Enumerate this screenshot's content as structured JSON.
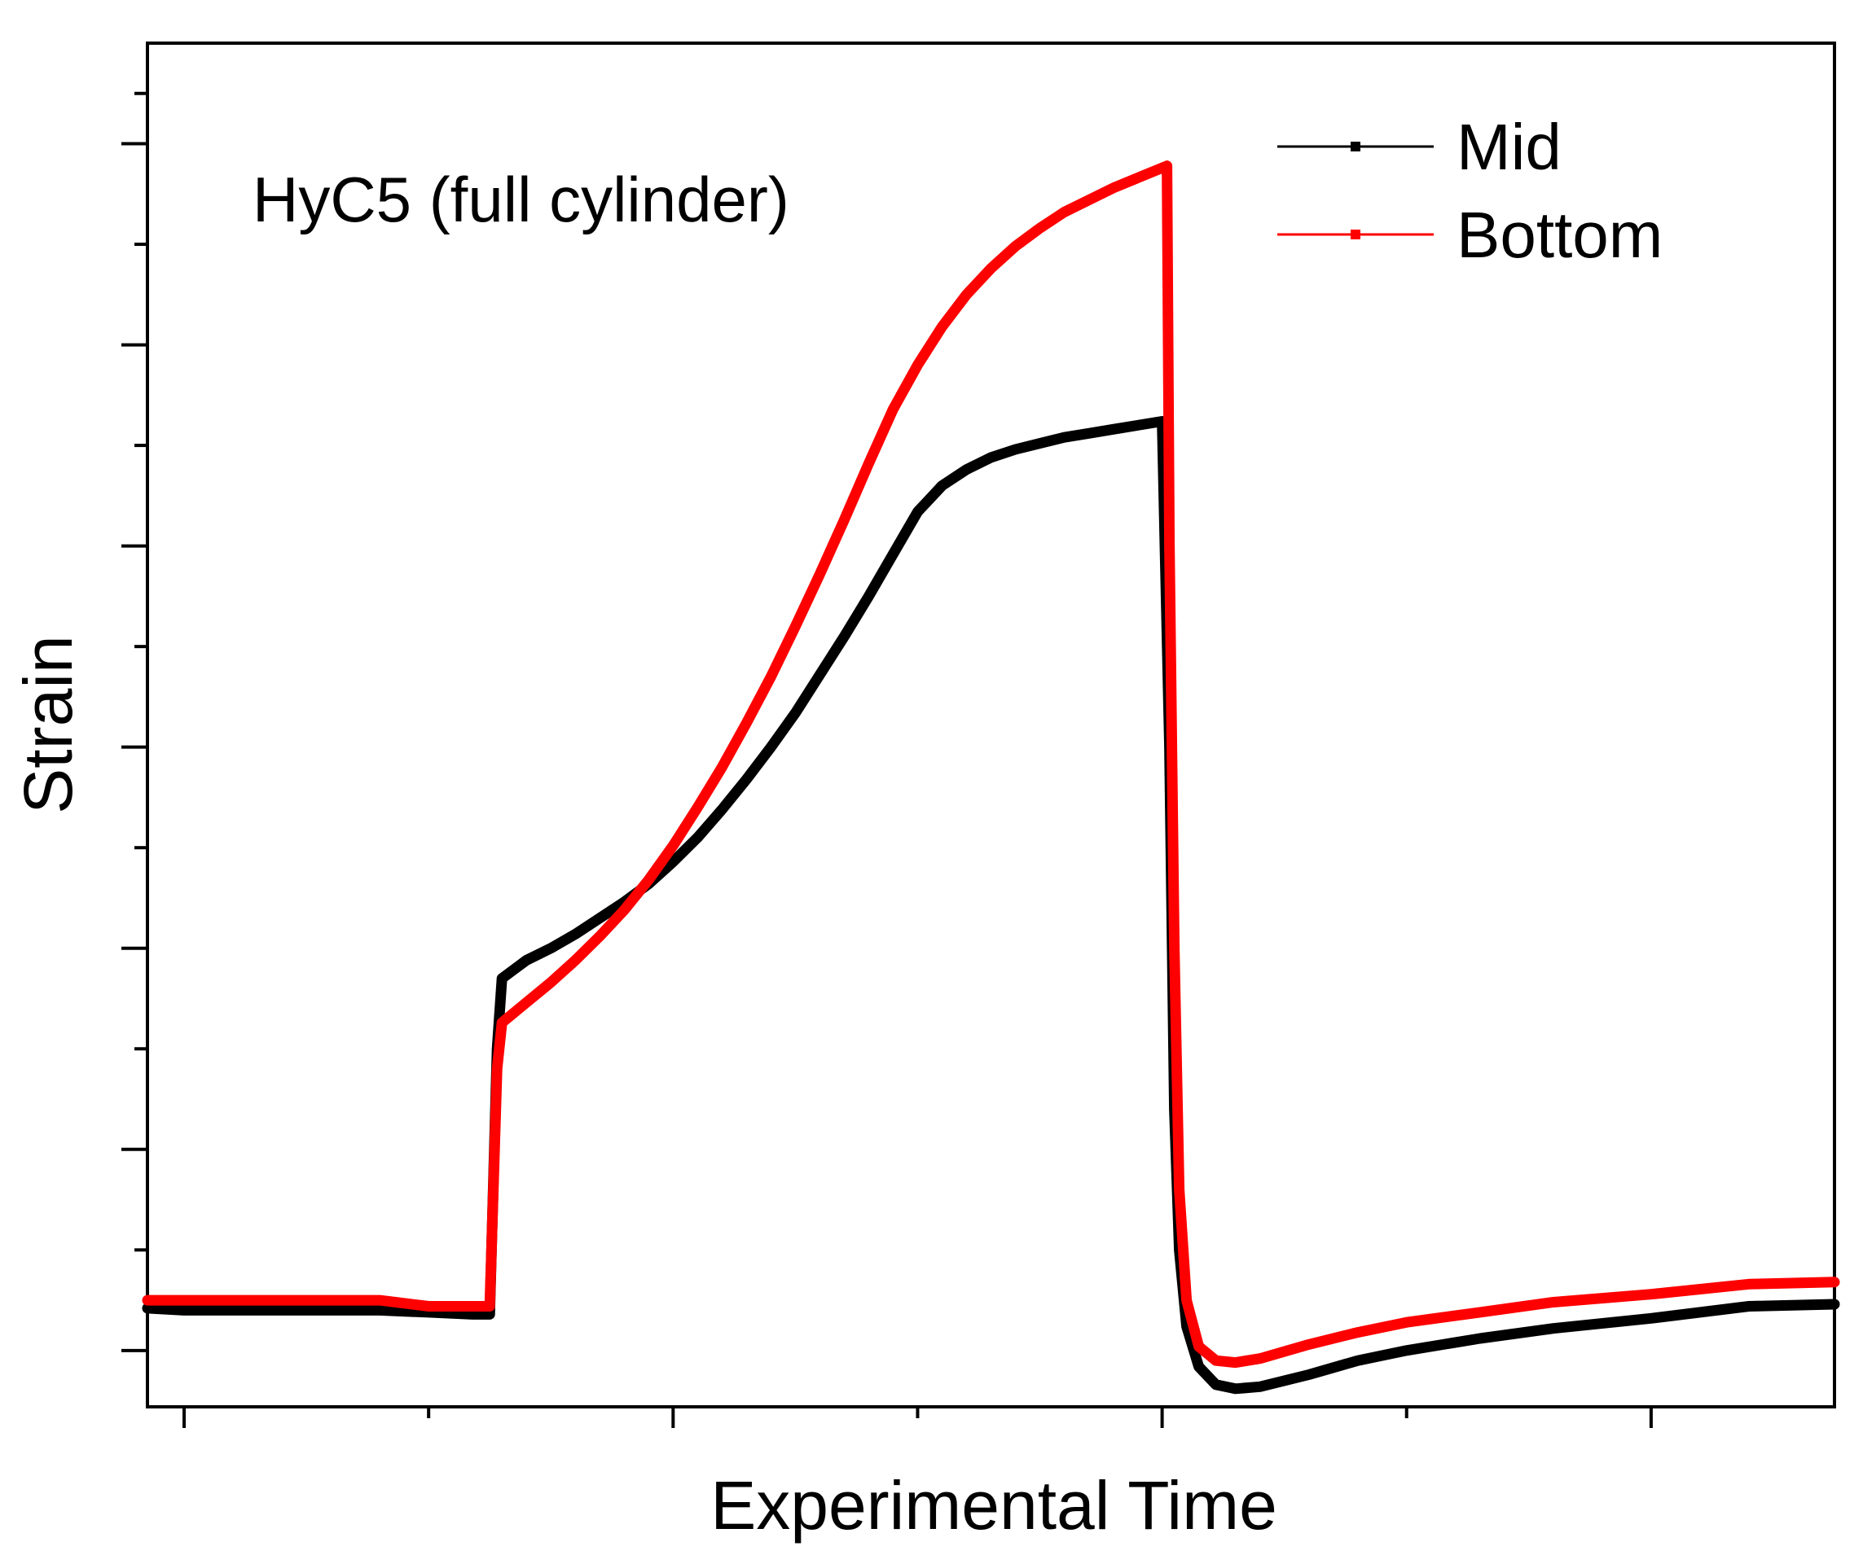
{
  "chart_data": {
    "type": "line",
    "title": "",
    "xlabel": "Experimental Time",
    "ylabel": "Strain",
    "annotation": "HyC5 (full cylinder)",
    "xlim": [
      -0.15,
      6.75
    ],
    "ylim": [
      -0.28,
      6.5
    ],
    "x_major_ticks": [
      0,
      2,
      4,
      6
    ],
    "x_minor_ticks": [
      1,
      3,
      5
    ],
    "y_major_ticks": [
      0,
      1,
      2,
      3,
      4,
      5,
      6
    ],
    "y_minor_ticks": [
      0.5,
      1.5,
      2.5,
      3.5,
      4.5,
      5.5,
      6.25
    ],
    "tick_labels_visible": false,
    "grid": false,
    "legend_position": "top-right",
    "series": [
      {
        "name": "Mid",
        "color": "#000000",
        "points": [
          [
            -0.15,
            0.21
          ],
          [
            0,
            0.2
          ],
          [
            0.8,
            0.2
          ],
          [
            1.0,
            0.19
          ],
          [
            1.18,
            0.18
          ],
          [
            1.25,
            0.18
          ],
          [
            1.28,
            1.5
          ],
          [
            1.3,
            1.85
          ],
          [
            1.4,
            1.94
          ],
          [
            1.5,
            2.0
          ],
          [
            1.6,
            2.07
          ],
          [
            1.7,
            2.15
          ],
          [
            1.8,
            2.23
          ],
          [
            1.9,
            2.32
          ],
          [
            2.0,
            2.43
          ],
          [
            2.1,
            2.55
          ],
          [
            2.2,
            2.69
          ],
          [
            2.3,
            2.84
          ],
          [
            2.4,
            3.0
          ],
          [
            2.5,
            3.17
          ],
          [
            2.6,
            3.36
          ],
          [
            2.7,
            3.55
          ],
          [
            2.8,
            3.75
          ],
          [
            2.9,
            3.96
          ],
          [
            3.0,
            4.17
          ],
          [
            3.1,
            4.3
          ],
          [
            3.2,
            4.38
          ],
          [
            3.3,
            4.44
          ],
          [
            3.4,
            4.48
          ],
          [
            3.5,
            4.51
          ],
          [
            3.6,
            4.54
          ],
          [
            3.7,
            4.56
          ],
          [
            3.8,
            4.58
          ],
          [
            4.0,
            4.62
          ],
          [
            4.03,
            3.0
          ],
          [
            4.05,
            1.2
          ],
          [
            4.07,
            0.5
          ],
          [
            4.1,
            0.12
          ],
          [
            4.15,
            -0.08
          ],
          [
            4.22,
            -0.17
          ],
          [
            4.3,
            -0.19
          ],
          [
            4.4,
            -0.18
          ],
          [
            4.6,
            -0.12
          ],
          [
            4.8,
            -0.05
          ],
          [
            5.0,
            0.0
          ],
          [
            5.3,
            0.06
          ],
          [
            5.6,
            0.11
          ],
          [
            6.0,
            0.16
          ],
          [
            6.4,
            0.22
          ],
          [
            6.75,
            0.23
          ]
        ]
      },
      {
        "name": "Bottom",
        "color": "#ff0000",
        "points": [
          [
            -0.15,
            0.25
          ],
          [
            0,
            0.25
          ],
          [
            0.8,
            0.25
          ],
          [
            1.0,
            0.22
          ],
          [
            1.18,
            0.22
          ],
          [
            1.25,
            0.22
          ],
          [
            1.28,
            1.4
          ],
          [
            1.3,
            1.63
          ],
          [
            1.4,
            1.73
          ],
          [
            1.5,
            1.83
          ],
          [
            1.6,
            1.94
          ],
          [
            1.7,
            2.06
          ],
          [
            1.8,
            2.19
          ],
          [
            1.9,
            2.34
          ],
          [
            2.0,
            2.51
          ],
          [
            2.1,
            2.7
          ],
          [
            2.2,
            2.9
          ],
          [
            2.3,
            3.12
          ],
          [
            2.4,
            3.35
          ],
          [
            2.5,
            3.6
          ],
          [
            2.6,
            3.86
          ],
          [
            2.7,
            4.13
          ],
          [
            2.8,
            4.41
          ],
          [
            2.9,
            4.68
          ],
          [
            3.0,
            4.9
          ],
          [
            3.1,
            5.09
          ],
          [
            3.2,
            5.25
          ],
          [
            3.3,
            5.38
          ],
          [
            3.4,
            5.49
          ],
          [
            3.5,
            5.58
          ],
          [
            3.6,
            5.66
          ],
          [
            3.7,
            5.72
          ],
          [
            3.8,
            5.78
          ],
          [
            3.9,
            5.83
          ],
          [
            4.02,
            5.89
          ],
          [
            4.03,
            4.0
          ],
          [
            4.05,
            2.0
          ],
          [
            4.07,
            0.8
          ],
          [
            4.1,
            0.25
          ],
          [
            4.15,
            0.02
          ],
          [
            4.22,
            -0.05
          ],
          [
            4.3,
            -0.06
          ],
          [
            4.4,
            -0.04
          ],
          [
            4.6,
            0.03
          ],
          [
            4.8,
            0.09
          ],
          [
            5.0,
            0.14
          ],
          [
            5.3,
            0.19
          ],
          [
            5.6,
            0.24
          ],
          [
            6.0,
            0.28
          ],
          [
            6.4,
            0.33
          ],
          [
            6.75,
            0.34
          ]
        ]
      }
    ]
  }
}
